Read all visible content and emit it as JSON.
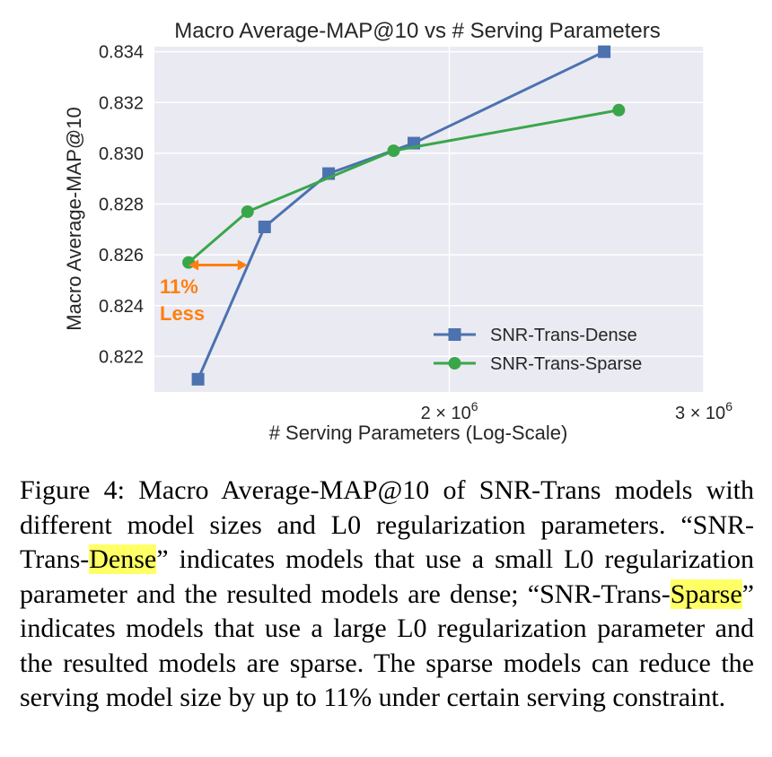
{
  "chart_data": {
    "type": "line",
    "title": "Macro Average-MAP@10 vs # Serving Parameters",
    "xlabel": "# Serving Parameters (Log-Scale)",
    "ylabel": "Macro Average-MAP@10",
    "xscale": "log",
    "xlim": [
      1250000,
      3000000
    ],
    "ylim": [
      0.8206,
      0.8342
    ],
    "yticks": [
      0.822,
      0.824,
      0.826,
      0.828,
      0.83,
      0.832,
      0.834
    ],
    "ytick_labels": [
      "0.822",
      "0.824",
      "0.826",
      "0.828",
      "0.830",
      "0.832",
      "0.834"
    ],
    "xticks": [
      2000000,
      3000000
    ],
    "xtick_labels": [
      {
        "base": "2 × 10",
        "exp": "6"
      },
      {
        "base": "3 × 10",
        "exp": "6"
      }
    ],
    "grid": true,
    "background": "#eaeaf2",
    "legend": "bottom-right",
    "series": [
      {
        "name": "SNR-Trans-Dense",
        "color": "#4c72b0",
        "marker": "square",
        "x": [
          1340000,
          1490000,
          1650000,
          1890000,
          2560000
        ],
        "y": [
          0.8211,
          0.8271,
          0.8292,
          0.8304,
          0.834
        ]
      },
      {
        "name": "SNR-Trans-Sparse",
        "color": "#3aa64a",
        "marker": "circle",
        "x": [
          1320000,
          1450000,
          1830000,
          2620000
        ],
        "y": [
          0.8257,
          0.8277,
          0.8301,
          0.8317
        ]
      }
    ],
    "annotation": {
      "lines": [
        "11%",
        "Less"
      ],
      "color": "#ff7f0e",
      "arrow": {
        "x1": 1320000,
        "x2": 1450000,
        "y": 0.8256
      }
    }
  },
  "caption": {
    "part1": "Figure 4: Macro Average-MAP@10 of SNR-Trans models with different model sizes and L0 regularization parameters. “SNR-Trans-",
    "hl1": "Dense",
    "part2": "” indicates models that use a small L0 regularization parameter and the resulted models are dense; “SNR-Trans-",
    "hl2": "Sparse",
    "part3": "” indicates models that use a large L0 regularization parameter and the resulted models are sparse. The sparse models can reduce the serving model size by up to 11% under certain serving constraint."
  }
}
